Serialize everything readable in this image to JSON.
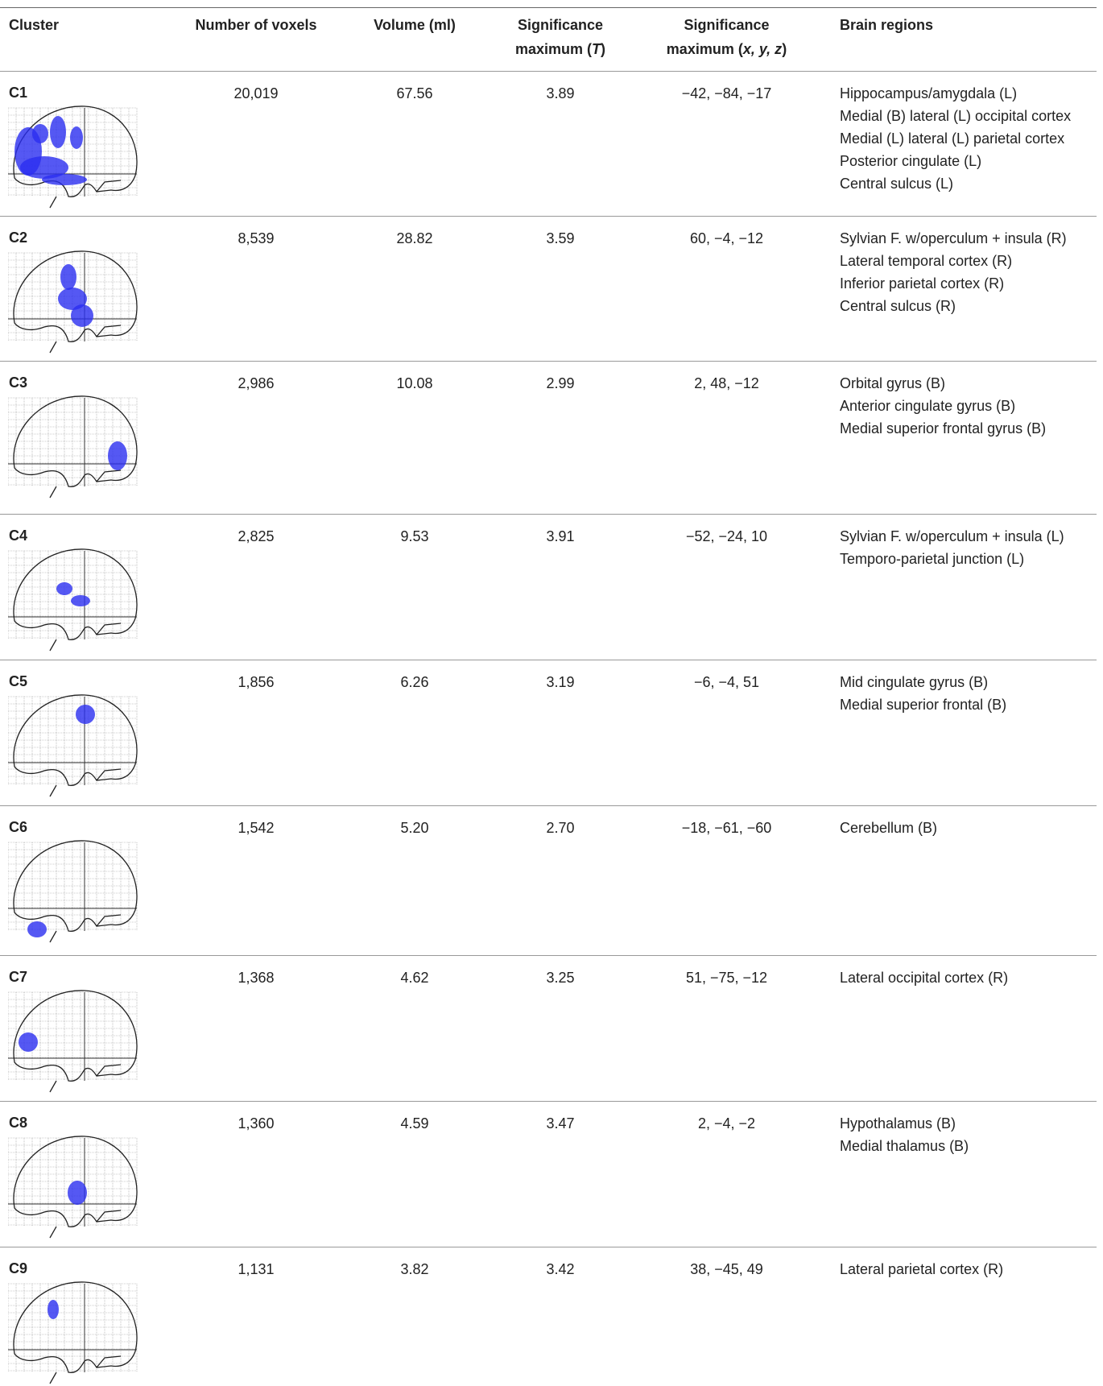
{
  "table": {
    "header": [
      "Cluster",
      "Number of voxels",
      "Volume (ml)",
      [
        "Significance maximum (",
        "T",
        ")"
      ],
      [
        "Significance maximum (",
        "x, y, z",
        ")"
      ],
      "Brain regions"
    ],
    "rows": [
      {
        "cluster": "C1",
        "voxels": "20,019",
        "volume": "67.56",
        "t": "3.89",
        "xyz": "−42, −84, −17",
        "regions": [
          "Hippocampus/amygdala (L)",
          "Medial (B) lateral (L) occipital cortex",
          "Medial (L) lateral (L) parietal cortex",
          "Posterior cingulate (L)",
          "Central sulcus (L)"
        ]
      },
      {
        "cluster": "C2",
        "voxels": "8,539",
        "volume": "28.82",
        "t": "3.59",
        "xyz": "60, −4, −12",
        "regions": [
          "Sylvian F. w/operculum + insula (R)",
          "Lateral temporal cortex (R)",
          "Inferior parietal cortex (R)",
          "Central sulcus (R)"
        ]
      },
      {
        "cluster": "C3",
        "voxels": "2,986",
        "volume": "10.08",
        "t": "2.99",
        "xyz": "2, 48, −12",
        "regions": [
          "Orbital gyrus (B)",
          "Anterior cingulate gyrus (B)",
          "Medial superior frontal gyrus (B)"
        ]
      },
      {
        "cluster": "C4",
        "voxels": "2,825",
        "volume": "9.53",
        "t": "3.91",
        "xyz": "−52, −24, 10",
        "regions": [
          "Sylvian F. w/operculum + insula (L)",
          "Temporo-parietal junction (L)"
        ]
      },
      {
        "cluster": "C5",
        "voxels": "1,856",
        "volume": "6.26",
        "t": "3.19",
        "xyz": "−6, −4, 51",
        "regions": [
          "Mid cingulate gyrus (B)",
          "Medial superior frontal (B)"
        ]
      },
      {
        "cluster": "C6",
        "voxels": "1,542",
        "volume": "5.20",
        "t": "2.70",
        "xyz": "−18, −61, −60",
        "regions": [
          "Cerebellum (B)"
        ]
      },
      {
        "cluster": "C7",
        "voxels": "1,368",
        "volume": "4.62",
        "t": "3.25",
        "xyz": "51, −75, −12",
        "regions": [
          "Lateral occipital cortex (R)"
        ]
      },
      {
        "cluster": "C8",
        "voxels": "1,360",
        "volume": "4.59",
        "t": "3.47",
        "xyz": "2, −4, −2",
        "regions": [
          "Hypothalamus (B)",
          "Medial thalamus (B)"
        ]
      },
      {
        "cluster": "C9",
        "voxels": "1,131",
        "volume": "3.82",
        "t": "3.42",
        "xyz": "38, −45, 49",
        "regions": [
          "Lateral parietal cortex (R)"
        ]
      }
    ]
  }
}
